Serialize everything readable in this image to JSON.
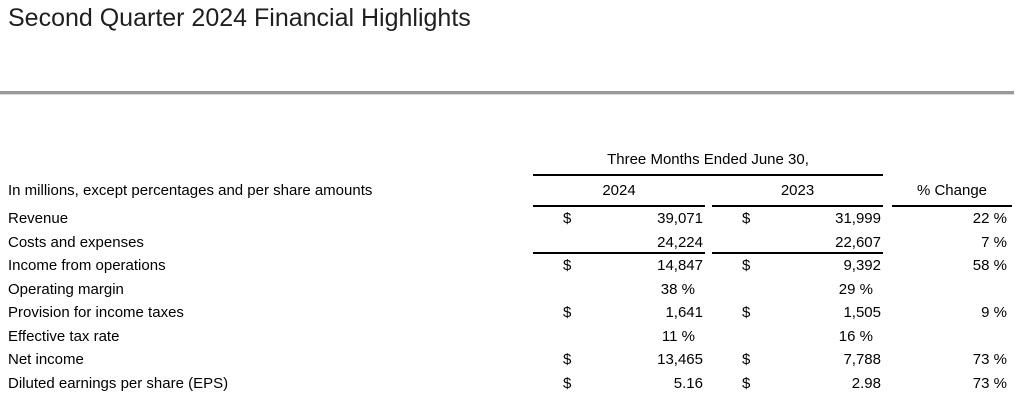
{
  "page": {
    "title": "Second Quarter 2024 Financial Highlights"
  },
  "colors": {
    "divider_gray": "#9a9a9a",
    "divider_gray_light": "#d8d8d8",
    "table_rule_black": "#000000",
    "text_black": "#000000",
    "title_text": "#1f1f1f",
    "background": "#ffffff"
  },
  "table": {
    "period_header": "Three Months Ended June 30,",
    "note": "In millions, except percentages and per share amounts",
    "columns": {
      "y2024": "2024",
      "y2023": "2023",
      "change": "% Change"
    },
    "rows": [
      {
        "label": "Revenue",
        "dollar_2024": "$",
        "value_2024": "39,071",
        "dollar_2023": "$",
        "value_2023": "31,999",
        "change": "22 %",
        "percent_values": false,
        "rule_below": false
      },
      {
        "label": "Costs and expenses",
        "dollar_2024": "",
        "value_2024": "24,224",
        "dollar_2023": "",
        "value_2023": "22,607",
        "change": "7 %",
        "percent_values": false,
        "rule_below": true
      },
      {
        "label": "Income from operations",
        "dollar_2024": "$",
        "value_2024": "14,847",
        "dollar_2023": "$",
        "value_2023": "9,392",
        "change": "58 %",
        "percent_values": false,
        "rule_below": false
      },
      {
        "label": "Operating margin",
        "dollar_2024": "",
        "value_2024": "38 %",
        "dollar_2023": "",
        "value_2023": "29 %",
        "change": "",
        "percent_values": true,
        "rule_below": false
      },
      {
        "label": "Provision for income taxes",
        "dollar_2024": "$",
        "value_2024": "1,641",
        "dollar_2023": "$",
        "value_2023": "1,505",
        "change": "9 %",
        "percent_values": false,
        "rule_below": false
      },
      {
        "label": "Effective tax rate",
        "dollar_2024": "",
        "value_2024": "11 %",
        "dollar_2023": "",
        "value_2023": "16 %",
        "change": "",
        "percent_values": true,
        "rule_below": false
      },
      {
        "label": "Net income",
        "dollar_2024": "$",
        "value_2024": "13,465",
        "dollar_2023": "$",
        "value_2023": "7,788",
        "change": "73 %",
        "percent_values": false,
        "rule_below": false
      },
      {
        "label": "Diluted earnings per share (EPS)",
        "dollar_2024": "$",
        "value_2024": "5.16",
        "dollar_2023": "$",
        "value_2023": "2.98",
        "change": "73 %",
        "percent_values": false,
        "rule_below": false
      }
    ]
  }
}
